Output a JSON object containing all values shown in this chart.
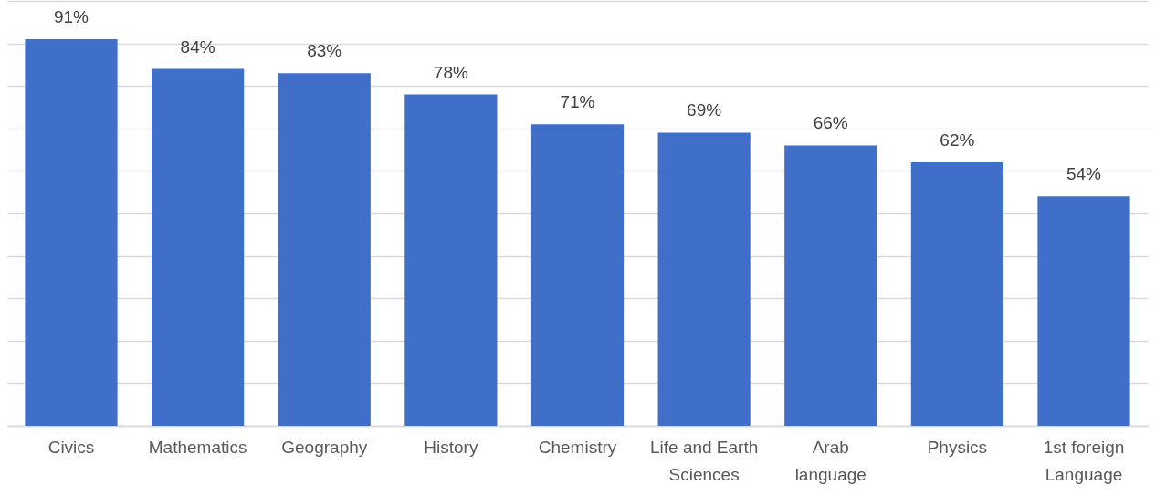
{
  "chart_data": {
    "type": "bar",
    "categories": [
      "Civics",
      "Mathematics",
      "Geography",
      "History",
      "Chemistry",
      "Life and Earth Sciences",
      "Arab language",
      "Physics",
      "1st foreign Language"
    ],
    "values": [
      91,
      84,
      83,
      78,
      71,
      69,
      66,
      62,
      54
    ],
    "value_labels": [
      "91%",
      "84%",
      "83%",
      "78%",
      "71%",
      "69%",
      "66%",
      "62%",
      "54%"
    ],
    "color": "#3f6fc9",
    "ylim": [
      0,
      100
    ],
    "yticks": [
      {
        "value": 0,
        "label": null
      },
      {
        "value": 10,
        "label": null
      },
      {
        "value": 20,
        "label": null
      },
      {
        "value": 30,
        "label": null
      },
      {
        "value": 40,
        "label": null
      },
      {
        "value": 50,
        "label": null
      },
      {
        "value": 60,
        "label": null
      },
      {
        "value": 70,
        "label": null
      },
      {
        "value": 80,
        "label": null
      },
      {
        "value": 90,
        "label": null
      },
      {
        "value": 100,
        "label": null
      }
    ],
    "grid": "y",
    "tick_labels": "x"
  }
}
